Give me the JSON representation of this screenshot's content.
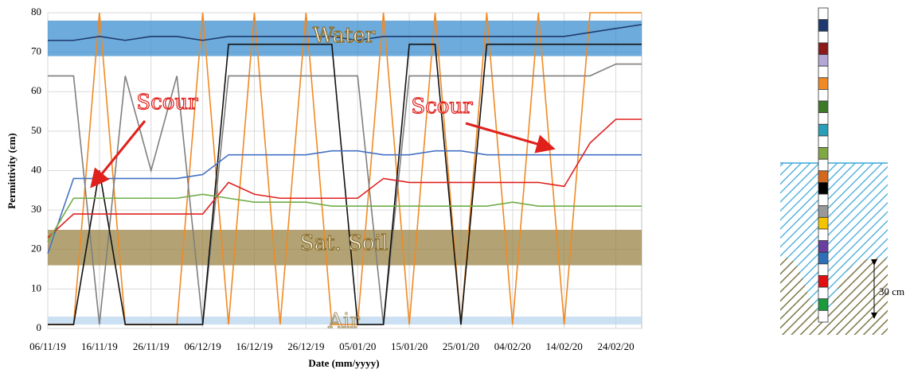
{
  "chart_data": {
    "type": "line",
    "x_label": "Date (mm/yyyy)",
    "y_label": "Permittivity (εm)",
    "x": [
      "06/11/19",
      "11/11/19",
      "16/11/19",
      "21/11/19",
      "26/11/19",
      "01/12/19",
      "06/12/19",
      "11/12/19",
      "16/12/19",
      "21/12/19",
      "26/12/19",
      "31/12/19",
      "05/01/20",
      "10/01/20",
      "15/01/20",
      "20/01/20",
      "25/01/20",
      "30/01/20",
      "04/02/20",
      "09/02/20",
      "14/02/20",
      "19/02/20",
      "24/02/20",
      "29/02/20"
    ],
    "xlim": [
      "06/11/19",
      "29/02/20"
    ],
    "xticks": [
      "06/11/19",
      "16/11/19",
      "26/11/19",
      "06/12/19",
      "16/12/19",
      "26/12/19",
      "05/01/20",
      "15/01/20",
      "25/01/20",
      "04/02/20",
      "14/02/20",
      "24/02/20"
    ],
    "ylim": [
      0,
      80
    ],
    "yticks": [
      0,
      10,
      20,
      30,
      40,
      50,
      60,
      70,
      80
    ],
    "grid": true,
    "bands": [
      {
        "label": "Water",
        "range": [
          69,
          78
        ],
        "color": "#3c8fd0"
      },
      {
        "label": "Sat. Soil",
        "range": [
          16,
          25
        ],
        "color": "#9a8445"
      },
      {
        "label": "Air",
        "range": [
          1,
          3
        ],
        "color": "#b9d5ef"
      }
    ],
    "annotations": [
      {
        "text": "Scour"
      },
      {
        "text": "Scour"
      }
    ],
    "series": [
      {
        "color": "#f08a24",
        "values": [
          1,
          1,
          80,
          1,
          1,
          1,
          80,
          1,
          80,
          1,
          80,
          1,
          1,
          80,
          1,
          80,
          1,
          80,
          1,
          80,
          1,
          80,
          80,
          80
        ]
      },
      {
        "color": "#7f7f7f",
        "values": [
          64,
          64,
          1,
          64,
          40,
          64,
          1,
          64,
          64,
          64,
          64,
          64,
          64,
          1,
          64,
          64,
          64,
          64,
          64,
          64,
          64,
          64,
          67,
          67
        ]
      },
      {
        "color": "#111111",
        "values": [
          1,
          1,
          40,
          1,
          1,
          1,
          1,
          72,
          72,
          72,
          72,
          72,
          1,
          1,
          72,
          72,
          1,
          72,
          72,
          72,
          72,
          72,
          72,
          72
        ]
      },
      {
        "color": "#1f3a6e",
        "values": [
          73,
          73,
          74,
          73,
          74,
          74,
          73,
          74,
          74,
          74,
          74,
          74,
          73,
          74,
          74,
          74,
          74,
          74,
          74,
          74,
          74,
          75,
          76,
          77
        ]
      },
      {
        "color": "#4472c4",
        "values": [
          19,
          38,
          38,
          38,
          38,
          38,
          39,
          44,
          44,
          44,
          44,
          45,
          45,
          44,
          44,
          45,
          45,
          44,
          44,
          44,
          44,
          44,
          44,
          44
        ]
      },
      {
        "color": "#e02020",
        "values": [
          23,
          29,
          29,
          29,
          29,
          29,
          29,
          37,
          34,
          33,
          33,
          33,
          33,
          38,
          37,
          37,
          37,
          37,
          37,
          37,
          36,
          47,
          53,
          53
        ]
      },
      {
        "color": "#70ad47",
        "values": [
          22,
          33,
          33,
          33,
          33,
          33,
          34,
          33,
          32,
          32,
          32,
          31,
          31,
          31,
          31,
          31,
          31,
          31,
          32,
          31,
          31,
          31,
          31,
          31
        ]
      }
    ]
  },
  "diagram": {
    "scale_label": "30 cm"
  }
}
